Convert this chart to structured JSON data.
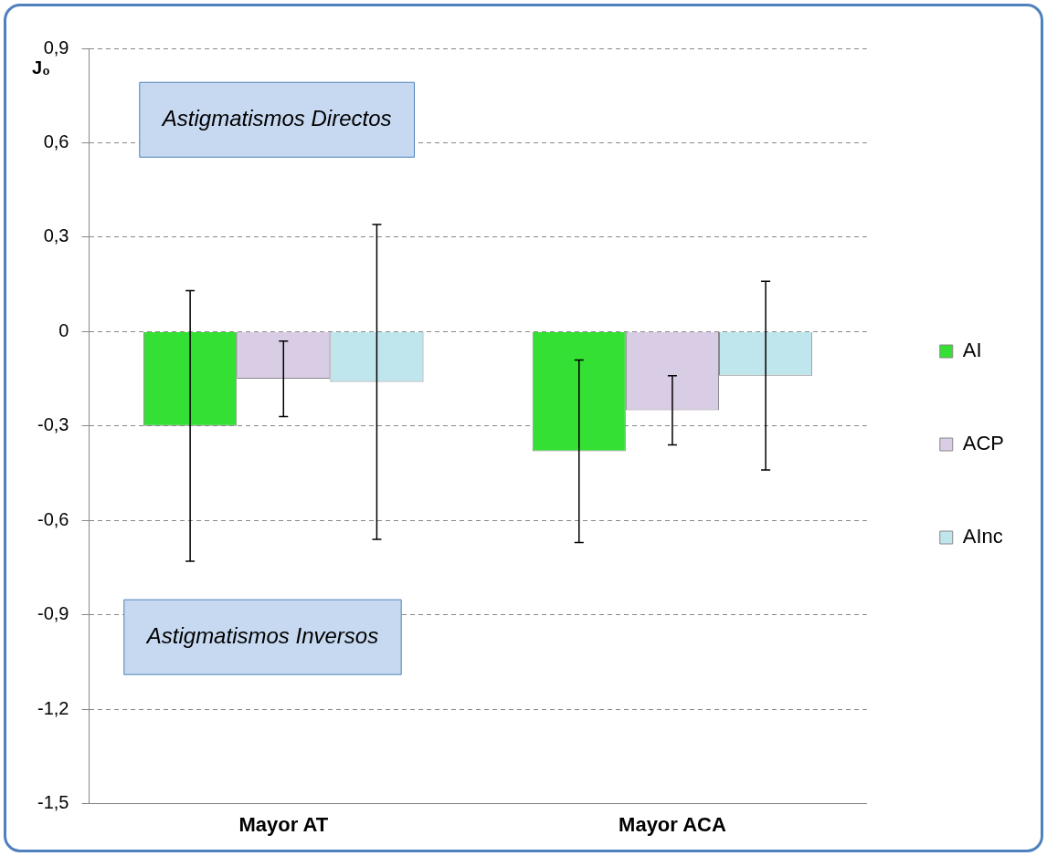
{
  "chart_data": {
    "type": "bar",
    "categories": [
      "Mayor AT",
      "Mayor ACA"
    ],
    "ylabel": "J₀",
    "series": [
      {
        "name": "AI",
        "color": "#33e033",
        "values": [
          -0.3,
          -0.38
        ],
        "errors": [
          [
            -0.73,
            0.13
          ],
          [
            -0.67,
            -0.09
          ]
        ]
      },
      {
        "name": "ACP",
        "color": "#d9cde6",
        "values": [
          -0.15,
          -0.25
        ],
        "errors": [
          [
            -0.27,
            -0.03
          ],
          [
            -0.36,
            -0.14
          ]
        ]
      },
      {
        "name": "AInc",
        "color": "#c0e6ed",
        "values": [
          -0.16,
          -0.14
        ],
        "errors": [
          [
            -0.66,
            0.34
          ],
          [
            -0.44,
            0.16
          ]
        ]
      }
    ],
    "ylim": [
      -1.5,
      0.9
    ],
    "yticks": [
      {
        "value": 0.9,
        "label": "0,9"
      },
      {
        "value": 0.6,
        "label": "0,6"
      },
      {
        "value": 0.3,
        "label": "0,3"
      },
      0,
      {
        "value": -0.3,
        "label": "-0,3"
      },
      {
        "value": -0.6,
        "label": "-0,6"
      },
      {
        "value": -0.9,
        "label": "-0,9"
      },
      {
        "value": -1.2,
        "label": "-1,2"
      },
      {
        "value": -1.5,
        "label": "-1,5"
      }
    ],
    "grid": "y",
    "legend": "right",
    "annotations": [
      "Astigmatismos Directos",
      "Astigmatismos Inversos"
    ]
  }
}
